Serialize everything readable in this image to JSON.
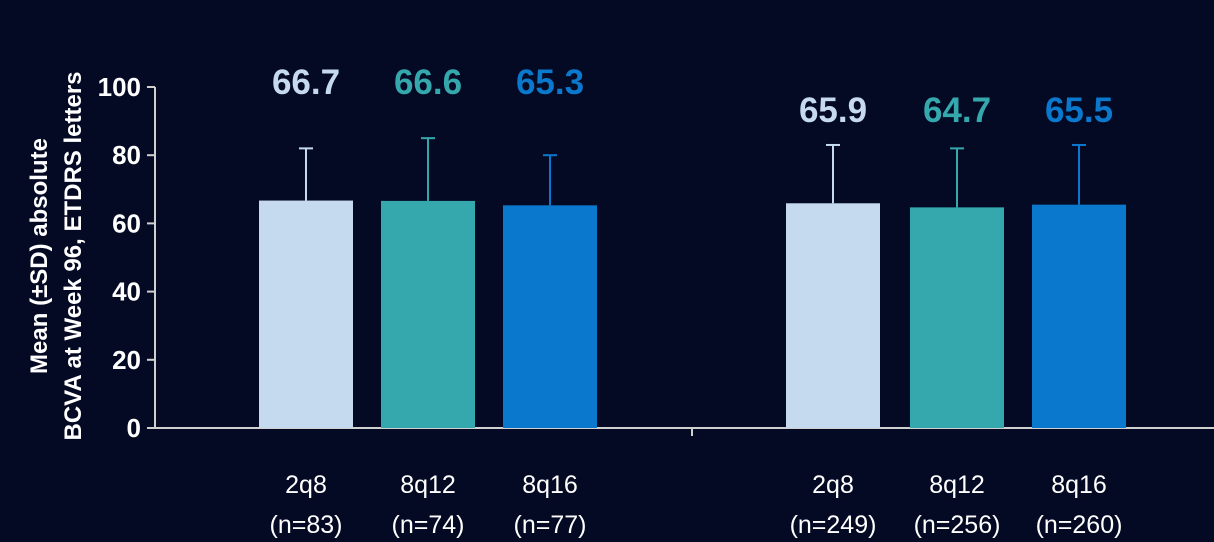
{
  "chart_data": {
    "type": "bar",
    "ylabel": [
      "Mean (±SD) absolute",
      "BCVA at Week 96, ETDRS letters"
    ],
    "ylim": [
      0,
      100
    ],
    "yticks": [
      0,
      20,
      40,
      60,
      80,
      100
    ],
    "colors": {
      "2q8": "#c5d9ef",
      "8q12": "#35a8ad",
      "8q16": "#0a78cc",
      "axis": "#d0d0d0",
      "error_bar": "#c8c8c8"
    },
    "groups": [
      {
        "bars": [
          {
            "category": "2q8",
            "n_label": "(n=83)",
            "value": 66.7,
            "sd_upper": 82,
            "label": "66.7",
            "color_key": "2q8"
          },
          {
            "category": "8q12",
            "n_label": "(n=74)",
            "value": 66.6,
            "sd_upper": 85,
            "label": "66.6",
            "color_key": "8q12"
          },
          {
            "category": "8q16",
            "n_label": "(n=77)",
            "value": 65.3,
            "sd_upper": 80,
            "label": "65.3",
            "color_key": "8q16"
          }
        ]
      },
      {
        "bars": [
          {
            "category": "2q8",
            "n_label": "(n=249)",
            "value": 65.9,
            "sd_upper": 83,
            "label": "65.9",
            "color_key": "2q8"
          },
          {
            "category": "8q12",
            "n_label": "(n=256)",
            "value": 64.7,
            "sd_upper": 82,
            "label": "64.7",
            "color_key": "8q12"
          },
          {
            "category": "8q16",
            "n_label": "(n=260)",
            "value": 65.5,
            "sd_upper": 83,
            "label": "65.5",
            "color_key": "8q16"
          }
        ]
      }
    ]
  }
}
